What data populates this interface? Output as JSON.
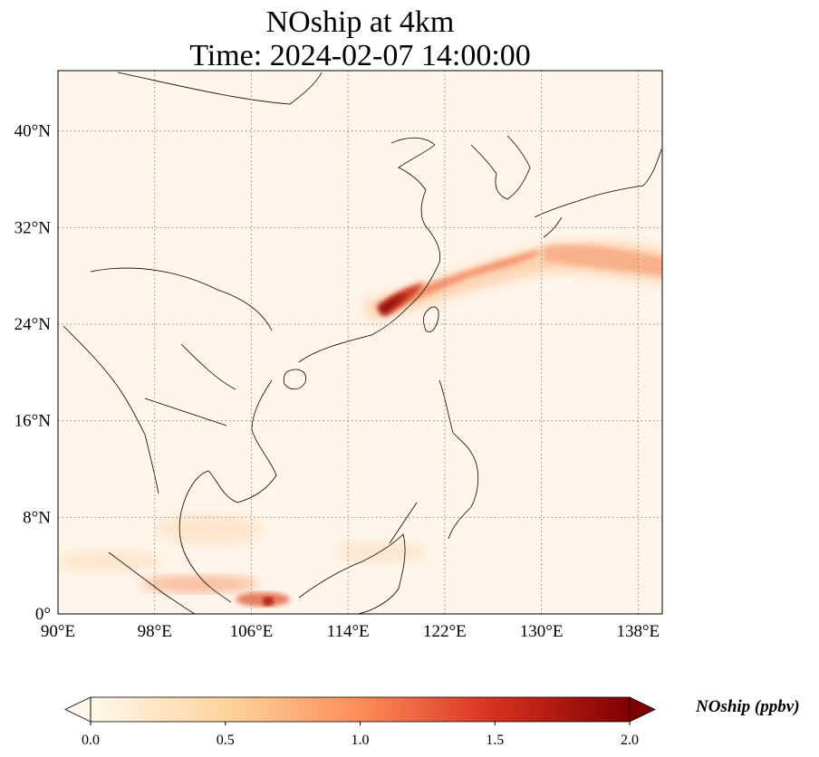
{
  "title": {
    "line1": "NOship at 4km",
    "line2": "Time: 2024-02-07 14:00:00"
  },
  "map": {
    "variable": "NOship",
    "extent": {
      "lon": [
        90,
        140
      ],
      "lat": [
        0,
        45
      ]
    },
    "lon_ticks": [
      {
        "value": 90,
        "label": "90°E"
      },
      {
        "value": 98,
        "label": "98°E"
      },
      {
        "value": 106,
        "label": "106°E"
      },
      {
        "value": 114,
        "label": "114°E"
      },
      {
        "value": 122,
        "label": "122°E"
      },
      {
        "value": 130,
        "label": "130°E"
      },
      {
        "value": 138,
        "label": "138°E"
      }
    ],
    "lat_ticks": [
      {
        "value": 0,
        "label": "0°"
      },
      {
        "value": 8,
        "label": "8°N"
      },
      {
        "value": 16,
        "label": "16°N"
      },
      {
        "value": 24,
        "label": "24°N"
      },
      {
        "value": 32,
        "label": "32°N"
      },
      {
        "value": 40,
        "label": "40°N"
      }
    ],
    "gridlines": "dotted",
    "colormap": "OrRd"
  },
  "colorbar": {
    "label": "NOship (ppbv)",
    "range": [
      0.0,
      2.0
    ],
    "ticks": [
      "0.0",
      "0.5",
      "1.0",
      "1.5",
      "2.0"
    ],
    "extend": "both",
    "colors": [
      "#fff7ec",
      "#fdd49e",
      "#fc8d59",
      "#d7301f",
      "#7f0000"
    ]
  }
}
